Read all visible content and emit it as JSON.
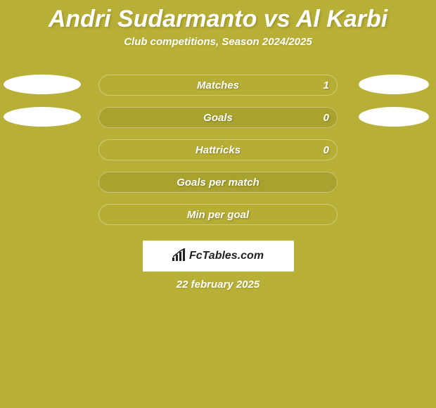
{
  "background_color": "#b8b036",
  "text_color": "#ffffff",
  "title": "Andri Sudarmanto vs Al Karbi",
  "title_color": "#ffffff",
  "subtitle": "Club competitions, Season 2024/2025",
  "subtitle_color": "#ffffff",
  "stats": [
    {
      "label": "Matches",
      "value": "1",
      "color": "#b6ae34",
      "show_ovals": true
    },
    {
      "label": "Goals",
      "value": "0",
      "color": "#a8a22e",
      "show_ovals": true
    },
    {
      "label": "Hattricks",
      "value": "0",
      "color": "#b6ae34",
      "show_ovals": false
    },
    {
      "label": "Goals per match",
      "value": "",
      "color": "#a8a22e",
      "show_ovals": false
    },
    {
      "label": "Min per goal",
      "value": "",
      "color": "#b6ae34",
      "show_ovals": false
    }
  ],
  "pill_width": 340,
  "pill_height": 30,
  "pill_radius": 15,
  "pill_text_color": "#ffffff",
  "oval_color": "#ffffff",
  "logo_text": "FcTables.com",
  "logo_icon": "signal-icon",
  "date": "22 february 2025",
  "date_color": "#ffffff"
}
